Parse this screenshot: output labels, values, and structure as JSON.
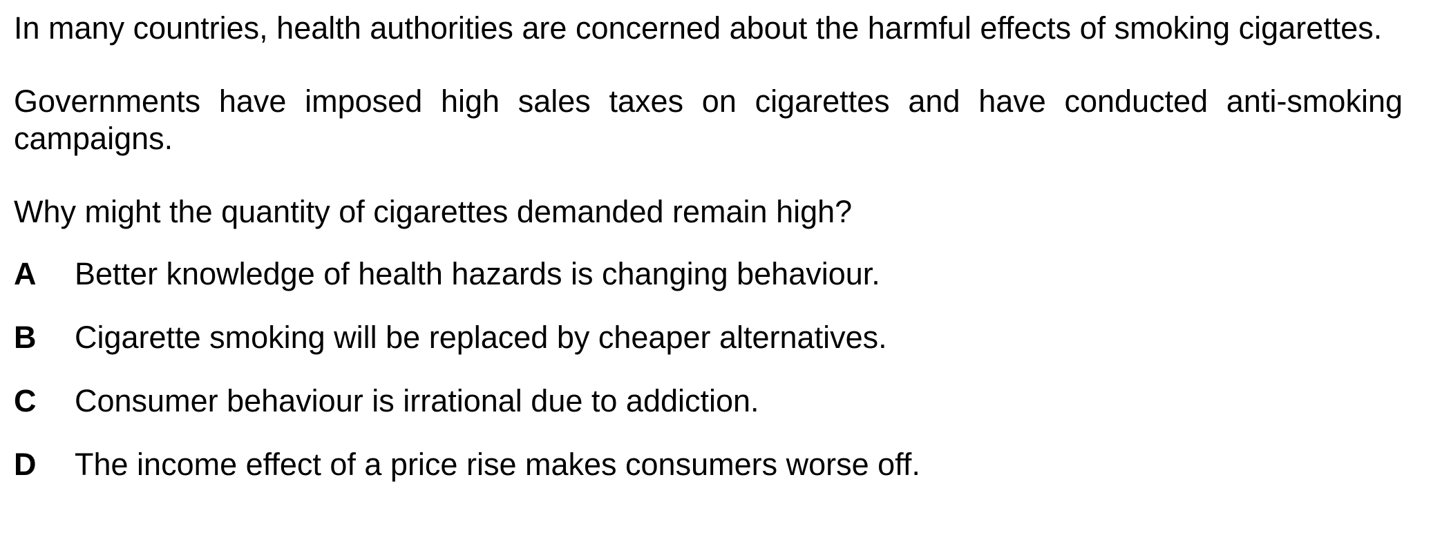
{
  "question": {
    "paragraphs": [
      "In many countries, health authorities are concerned about the harmful effects of smoking cigarettes.",
      "Governments have imposed high sales taxes on cigarettes and have conducted anti-smoking campaigns."
    ],
    "prompt": "Why might the quantity of cigarettes demanded remain high?"
  },
  "options": [
    {
      "letter": "A",
      "text": "Better knowledge of health hazards is changing behaviour."
    },
    {
      "letter": "B",
      "text": "Cigarette smoking will be replaced by cheaper alternatives."
    },
    {
      "letter": "C",
      "text": "Consumer behaviour is irrational due to addiction."
    },
    {
      "letter": "D",
      "text": "The income effect of a price rise makes consumers worse off."
    }
  ]
}
